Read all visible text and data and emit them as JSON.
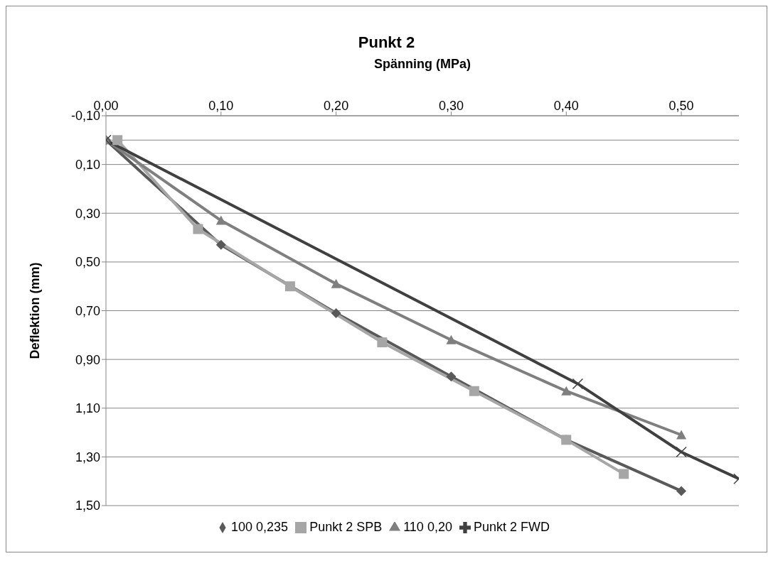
{
  "chart_data": {
    "type": "line",
    "title": "Punkt 2",
    "xlabel": "Spänning (MPa)",
    "ylabel": "Deflektion (mm)",
    "xlim": [
      0,
      0.55
    ],
    "xticks": [
      {
        "value": 0,
        "label": "0,00"
      },
      {
        "value": 0.1,
        "label": "0,10"
      },
      {
        "value": 0.2,
        "label": "0,20"
      },
      {
        "value": 0.3,
        "label": "0,30"
      },
      {
        "value": 0.4,
        "label": "0,40"
      },
      {
        "value": 0.5,
        "label": "0,50"
      }
    ],
    "ylim": [
      1.5,
      -0.1
    ],
    "yticks": [
      {
        "value": -0.1,
        "label": "-0,10"
      },
      {
        "value": 0.1,
        "label": "0,10"
      },
      {
        "value": 0.3,
        "label": "0,30"
      },
      {
        "value": 0.5,
        "label": "0,50"
      },
      {
        "value": 0.7,
        "label": "0,70"
      },
      {
        "value": 0.9,
        "label": "0,90"
      },
      {
        "value": 1.1,
        "label": "1,10"
      },
      {
        "value": 1.3,
        "label": "1,30"
      },
      {
        "value": 1.5,
        "label": "1,50"
      }
    ],
    "grid": "y",
    "legend": "bottom",
    "line_style": "solid",
    "ref_lines": [
      {
        "axis": "y",
        "value": 0,
        "color": "#868686"
      }
    ],
    "series": [
      {
        "name": "100 0,235",
        "color": "#595959",
        "marker": "diamond",
        "x": [
          0,
          0.1,
          0.2,
          0.3,
          0.4,
          0.5
        ],
        "values": [
          0,
          0.43,
          0.71,
          0.97,
          1.23,
          1.44
        ]
      },
      {
        "name": "Punkt 2 SPB",
        "color": "#a6a6a6",
        "marker": "square",
        "x": [
          0.01,
          0.08,
          0.16,
          0.24,
          0.32,
          0.4,
          0.45
        ],
        "values": [
          0,
          0.365,
          0.6,
          0.83,
          1.03,
          1.23,
          1.37
        ]
      },
      {
        "name": "110 0,20",
        "color": "#7f7f7f",
        "marker": "triangle",
        "x": [
          0,
          0.1,
          0.2,
          0.3,
          0.4,
          0.5
        ],
        "values": [
          0,
          0.33,
          0.59,
          0.82,
          1.03,
          1.21
        ]
      },
      {
        "name": "Punkt 2 FWD",
        "color": "#404040",
        "marker": "cross",
        "x": [
          0,
          0.41,
          0.5,
          0.55
        ],
        "values": [
          0,
          1.0,
          1.28,
          1.39
        ]
      }
    ]
  }
}
